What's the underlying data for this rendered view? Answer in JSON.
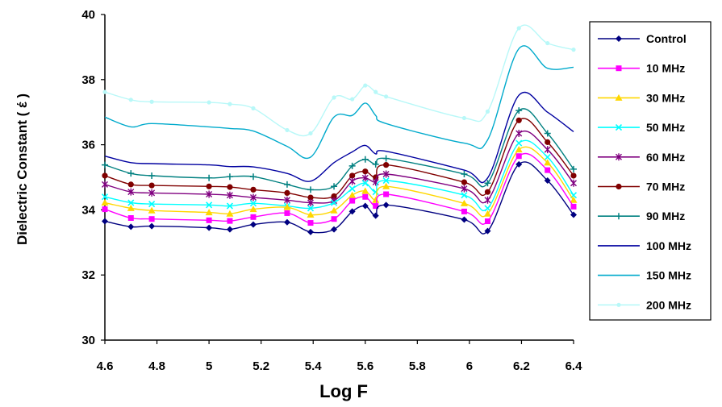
{
  "chart_data": {
    "type": "line",
    "xlabel": "Log F",
    "ylabel": "Dielectric Constant (   έ   )",
    "xlim": [
      4.6,
      6.4
    ],
    "ylim": [
      30,
      40
    ],
    "x_ticks": [
      "4.6",
      "4.8",
      "5",
      "5.2",
      "5.4",
      "5.6",
      "5.8",
      "6",
      "6.2",
      "6.4"
    ],
    "y_ticks": [
      "30",
      "32",
      "34",
      "36",
      "38",
      "40"
    ],
    "grid": false,
    "legend_position": "right",
    "x": [
      4.6,
      4.7,
      4.78,
      5.0,
      5.08,
      5.17,
      5.3,
      5.39,
      5.48,
      5.55,
      5.6,
      5.64,
      5.68,
      5.98,
      6.07,
      6.19,
      6.3,
      6.4
    ],
    "series": [
      {
        "name": "Control",
        "color": "#000080",
        "marker": "diamond",
        "values": [
          33.65,
          33.48,
          33.5,
          33.45,
          33.4,
          33.55,
          33.62,
          33.32,
          33.4,
          33.95,
          34.12,
          33.82,
          34.15,
          33.7,
          33.35,
          35.4,
          34.9,
          33.85
        ]
      },
      {
        "name": "10 MHz",
        "color": "#ff00ff",
        "marker": "square",
        "values": [
          34.02,
          33.75,
          33.72,
          33.68,
          33.66,
          33.78,
          33.9,
          33.6,
          33.72,
          34.28,
          34.4,
          34.12,
          34.48,
          33.95,
          33.65,
          35.65,
          35.22,
          34.1
        ]
      },
      {
        "name": "30 MHz",
        "color": "#ffd700",
        "marker": "triangle",
        "values": [
          34.22,
          34.05,
          33.98,
          33.92,
          33.88,
          34.02,
          34.08,
          33.85,
          33.98,
          34.45,
          34.58,
          34.3,
          34.72,
          34.2,
          33.88,
          35.85,
          35.45,
          34.3
        ]
      },
      {
        "name": "50 MHz",
        "color": "#00ffff",
        "marker": "x",
        "values": [
          34.4,
          34.22,
          34.18,
          34.15,
          34.12,
          34.2,
          34.12,
          34.05,
          34.22,
          34.65,
          34.82,
          34.55,
          34.9,
          34.45,
          34.05,
          36.05,
          35.62,
          34.45
        ]
      },
      {
        "name": "60 MHz",
        "color": "#800080",
        "marker": "star",
        "values": [
          34.78,
          34.55,
          34.52,
          34.48,
          34.45,
          34.38,
          34.3,
          34.22,
          34.28,
          34.88,
          34.98,
          34.85,
          35.1,
          34.65,
          34.3,
          36.35,
          35.85,
          34.82
        ]
      },
      {
        "name": "70 MHz",
        "color": "#800000",
        "marker": "circle",
        "values": [
          35.05,
          34.78,
          34.75,
          34.72,
          34.7,
          34.62,
          34.52,
          34.38,
          34.42,
          35.05,
          35.18,
          35.0,
          35.38,
          34.85,
          34.55,
          36.75,
          36.08,
          35.05
        ]
      },
      {
        "name": "90 MHz",
        "color": "#008080",
        "marker": "plus",
        "values": [
          35.38,
          35.12,
          35.05,
          34.98,
          35.02,
          35.02,
          34.78,
          34.62,
          34.72,
          35.35,
          35.55,
          35.4,
          35.58,
          35.1,
          34.82,
          37.05,
          36.35,
          35.25
        ]
      },
      {
        "name": "100 MHz",
        "color": "#0000a0",
        "marker": "none",
        "values": [
          35.65,
          35.45,
          35.42,
          35.38,
          35.33,
          35.32,
          35.12,
          34.88,
          35.45,
          35.78,
          35.98,
          35.72,
          35.8,
          35.22,
          34.98,
          37.52,
          37.0,
          36.4
        ]
      },
      {
        "name": "150 MHz",
        "color": "#00aacc",
        "marker": "none",
        "values": [
          36.85,
          36.55,
          36.65,
          36.55,
          36.5,
          36.42,
          35.95,
          35.62,
          36.85,
          36.9,
          37.28,
          36.9,
          36.65,
          36.05,
          36.15,
          38.95,
          38.35,
          38.38
        ]
      },
      {
        "name": "200 MHz",
        "color": "#b8f8f8",
        "marker": "circle-small",
        "values": [
          37.62,
          37.38,
          37.32,
          37.3,
          37.25,
          37.12,
          36.45,
          36.35,
          37.45,
          37.4,
          37.82,
          37.62,
          37.48,
          36.82,
          37.02,
          39.58,
          39.12,
          38.92
        ]
      }
    ]
  }
}
